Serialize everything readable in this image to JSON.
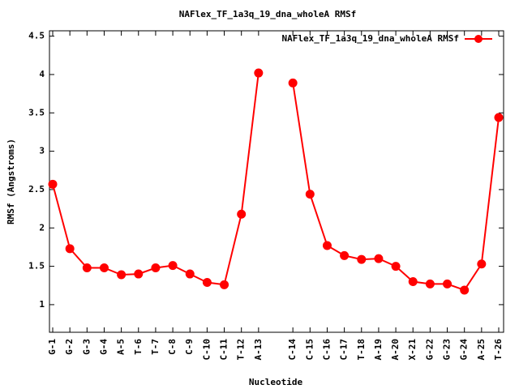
{
  "chart_data": {
    "type": "line",
    "title": "NAFlex_TF_1a3q_19_dna_wholeA RMSf",
    "x_label": "Nucleotide",
    "y_label": "RMSf (Angstroms)",
    "categories": [
      "G-1",
      "G-2",
      "G-3",
      "G-4",
      "A-5",
      "T-6",
      "T-7",
      "C-8",
      "C-9",
      "C-10",
      "C-11",
      "T-12",
      "A-13",
      null,
      "C-14",
      "C-15",
      "C-16",
      "C-17",
      "T-18",
      "A-19",
      "A-20",
      "X-21",
      "G-22",
      "G-23",
      "G-24",
      "A-25",
      "T-26"
    ],
    "series": [
      {
        "name": "NAFlex_TF_1a3q_19_dna_wholeA RMSf",
        "color": "#ff0000",
        "values": [
          2.57,
          1.73,
          1.48,
          1.48,
          1.39,
          1.4,
          1.48,
          1.51,
          1.4,
          1.29,
          1.26,
          2.18,
          4.02,
          null,
          3.89,
          2.44,
          1.77,
          1.64,
          1.59,
          1.6,
          1.5,
          1.3,
          1.27,
          1.27,
          1.19,
          1.53,
          3.44
        ]
      }
    ],
    "ylim": [
      0.64,
      4.57
    ],
    "yticks": [
      1,
      1.5,
      2,
      2.5,
      3,
      3.5,
      4,
      4.5
    ],
    "grid": false,
    "legend": "top-right"
  }
}
